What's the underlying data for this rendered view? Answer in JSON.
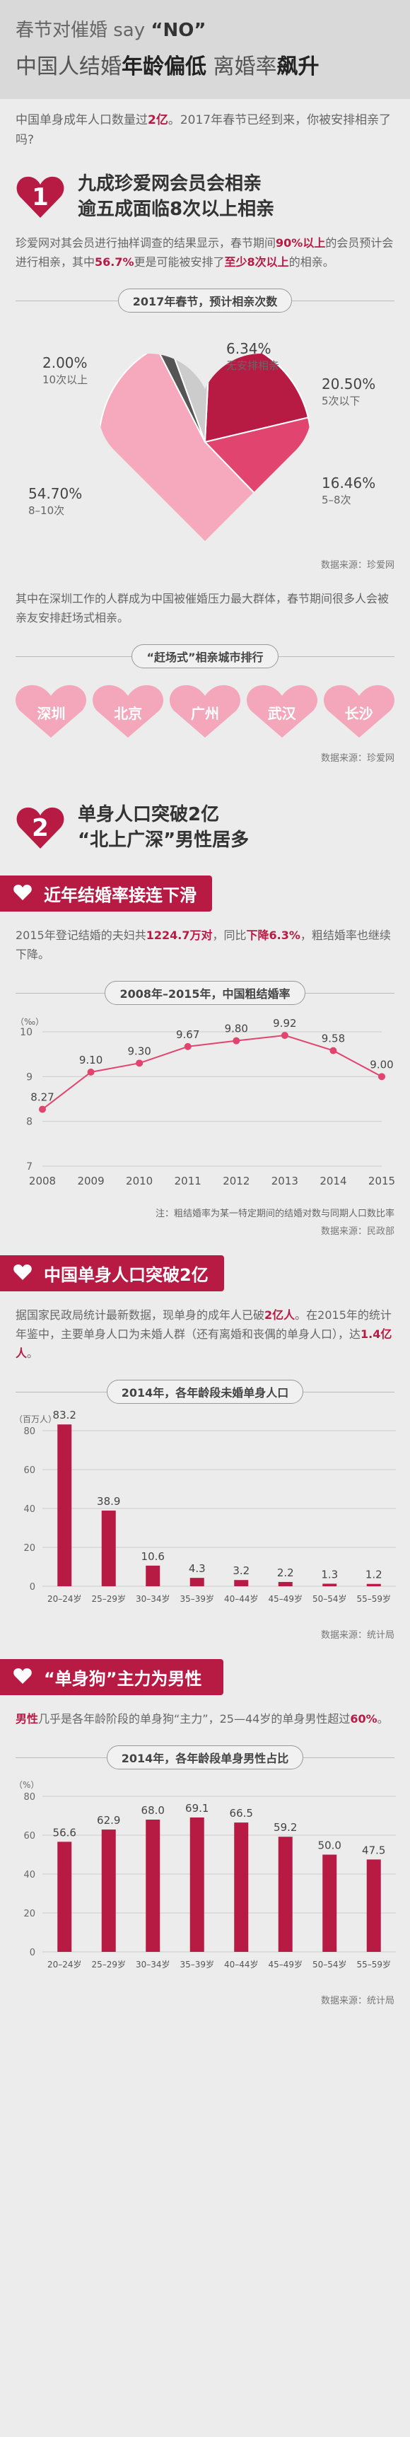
{
  "header": {
    "line1_prefix": "春节对催婚 say",
    "line1_emph": "“NO”",
    "line2_a": "中国人结婚",
    "line2_b": "年龄偏低",
    "line2_c": " 离婚率",
    "line2_d": "飙升"
  },
  "intro": {
    "p1": "中国单身成年人口数量过",
    "p1_hl": "2亿",
    "p1_b": "。2017年春节已经到来，你被安排相亲了吗?"
  },
  "section1": {
    "number": "1",
    "title_l1": "九成珍爱网会员会相亲",
    "title_l2": "逾五成面临8次以上相亲",
    "p_a": "珍爱网对其会员进行抽样调查的结果显示，春节期间",
    "p_hl1": "90%以上",
    "p_b": "的会员预计会进行相亲，其中",
    "p_hl2": "56.7%",
    "p_c": "更是可能被安排了",
    "p_hl3": "至少8次以上",
    "p_d": "的相亲。",
    "chart_title": "2017年春节，预计相亲次数",
    "source": "数据来源：珍爱网",
    "p2": "其中在深圳工作的人群成为中国被催婚压力最大群体，春节期间很多人会被亲友安排赶场式相亲。",
    "rank_title": "“赶场式”相亲城市排行",
    "cities": [
      "深圳",
      "北京",
      "广州",
      "武汉",
      "长沙"
    ],
    "source2": "数据来源：珍爱网"
  },
  "section2": {
    "number": "2",
    "title_l1": "单身人口突破2亿",
    "title_l2": "“北上广深”男性居多",
    "band1": "近年结婚率接连下滑",
    "p1_a": "2015年登记结婚的夫妇共",
    "p1_hl1": "1224.7万对",
    "p1_b": "，同比",
    "p1_hl2": "下降6.3%",
    "p1_c": "，粗结婚率也继续下降。",
    "line_title": "2008年–2015年，中国粗结婚率",
    "note1": "注：粗结婚率为某一特定期间的结婚对数与同期人口数比率",
    "source1": "数据来源：民政部",
    "band2": "中国单身人口突破2亿",
    "p2_a": "据国家民政局统计最新数据，现单身的成年人已破",
    "p2_hl1": "2亿人",
    "p2_b": "。在2015年的统计年鉴中，主要单身人口为未婚人群（还有离婚和丧偶的单身人口），达",
    "p2_hl2": "1.4亿人",
    "p2_c": "。",
    "bar1_title": "2014年，各年龄段未婚单身人口",
    "source2": "数据来源：统计局",
    "band3": "“单身狗”主力为男性",
    "p3_hl": "男性",
    "p3_a": "几乎是各年龄阶段的单身狗“主力”，25—44岁的单身男性超过",
    "p3_hl2": "60%",
    "p3_b": "。",
    "bar2_title": "2014年，各年龄段单身男性占比",
    "source3": "数据来源：统计局"
  },
  "colors": {
    "accent": "#b71b44",
    "pink": "#f4a7bb",
    "rose": "#e1456f",
    "dark_rose": "#b71b44"
  },
  "chart_data": [
    {
      "type": "pie",
      "title": "2017年春节，预计相亲次数",
      "slices": [
        {
          "label": "5次以下",
          "value": 20.5,
          "color": "#b71b44"
        },
        {
          "label": "5–8次",
          "value": 16.46,
          "color": "#e1456f"
        },
        {
          "label": "8–10次",
          "value": 54.7,
          "color": "#f6a9bd"
        },
        {
          "label": "10次以上",
          "value": 2.0,
          "color": "#555555"
        },
        {
          "label": "无安排相亲",
          "value": 6.34,
          "color": "#cccccc"
        }
      ]
    },
    {
      "type": "line",
      "title": "2008年–2015年，中国粗结婚率",
      "ylabel": "（‰）",
      "x": [
        "2008",
        "2009",
        "2010",
        "2011",
        "2012",
        "2013",
        "2014",
        "2015"
      ],
      "values": [
        8.27,
        9.1,
        9.3,
        9.67,
        9.8,
        9.92,
        9.58,
        9.0
      ],
      "labels": [
        "8.27",
        "9.10",
        "9.30",
        "9.67",
        "9.80",
        "9.92",
        "9.58",
        "9.00"
      ],
      "ylim": [
        7,
        10
      ],
      "yticks": [
        "7",
        "8",
        "9",
        "10"
      ]
    },
    {
      "type": "bar",
      "title": "2014年，各年龄段未婚单身人口",
      "ylabel": "（百万人）",
      "categories": [
        "20–24岁",
        "25–29岁",
        "30–34岁",
        "35–39岁",
        "40–44岁",
        "45–49岁",
        "50–54岁",
        "55–59岁"
      ],
      "values": [
        83.2,
        38.9,
        10.6,
        4.3,
        3.2,
        2.2,
        1.3,
        1.2
      ],
      "labels": [
        "83.2",
        "38.9",
        "10.6",
        "4.3",
        "3.2",
        "2.2",
        "1.3",
        "1.2"
      ],
      "ylim": [
        0,
        80
      ],
      "yticks": [
        "0",
        "20",
        "40",
        "60",
        "80"
      ]
    },
    {
      "type": "bar",
      "title": "2014年，各年龄段单身男性占比",
      "ylabel": "（%）",
      "categories": [
        "20–24岁",
        "25–29岁",
        "30–34岁",
        "35–39岁",
        "40–44岁",
        "45–49岁",
        "50–54岁",
        "55–59岁"
      ],
      "values": [
        56.6,
        62.9,
        68.0,
        69.1,
        66.5,
        59.2,
        50.0,
        47.5
      ],
      "labels": [
        "56.6",
        "62.9",
        "68.0",
        "69.1",
        "66.5",
        "59.2",
        "50.0",
        "47.5"
      ],
      "ylim": [
        0,
        80
      ],
      "yticks": [
        "0",
        "20",
        "40",
        "60",
        "80"
      ]
    }
  ]
}
